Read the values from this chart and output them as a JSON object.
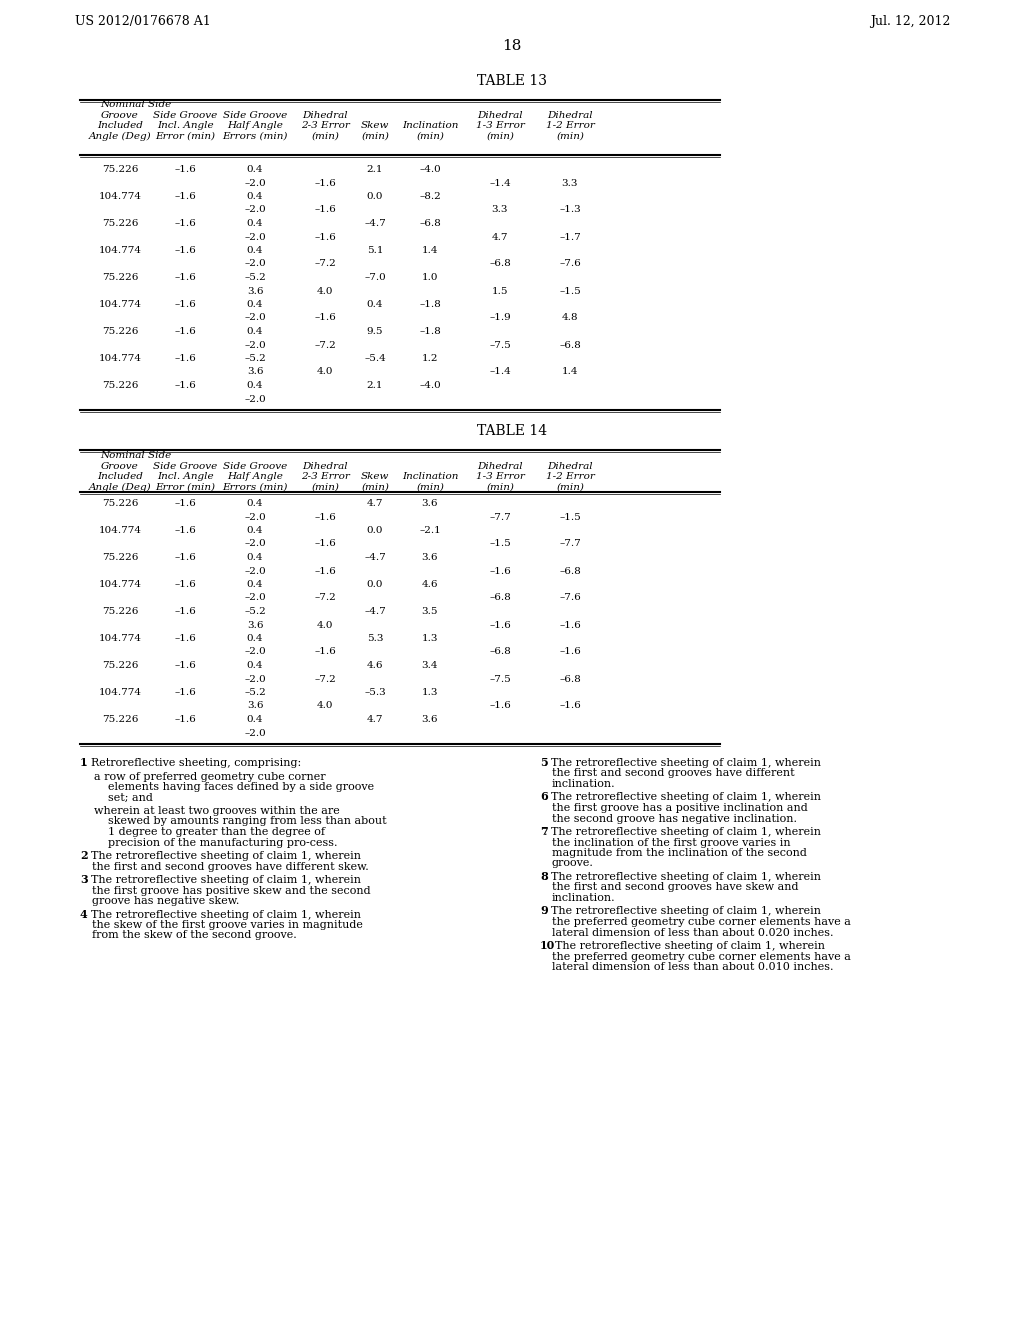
{
  "header_left": "US 2012/0176678 A1",
  "header_right": "Jul. 12, 2012",
  "page_number": "18",
  "table13_title": "TABLE 13",
  "table14_title": "TABLE 14",
  "col_headers": [
    [
      "Nominal Side",
      "",
      "",
      "",
      "",
      "",
      "",
      ""
    ],
    [
      "Groove",
      "Side Groove",
      "Side Groove",
      "Dihedral",
      "",
      "",
      "Dihedral",
      "Dihedral"
    ],
    [
      "Included",
      "Incl. Angle",
      "Half Angle",
      "2-3 Error",
      "Skew",
      "Inclination",
      "1-3 Error",
      "1-2 Error"
    ],
    [
      "Angle (Deg)",
      "Error (min)",
      "Errors (min)",
      "(min)",
      "(min)",
      "(min)",
      "(min)",
      "(min)"
    ]
  ],
  "table13_data": [
    [
      "75.226",
      "–1.6",
      "0.4",
      "",
      "2.1",
      "–4.0",
      "",
      ""
    ],
    [
      "",
      "",
      "–2.0",
      "–1.6",
      "",
      "",
      "–1.4",
      "3.3"
    ],
    [
      "104.774",
      "–1.6",
      "0.4",
      "",
      "0.0",
      "–8.2",
      "",
      ""
    ],
    [
      "",
      "",
      "–2.0",
      "–1.6",
      "",
      "",
      "3.3",
      "–1.3"
    ],
    [
      "75.226",
      "–1.6",
      "0.4",
      "",
      "–4.7",
      "–6.8",
      "",
      ""
    ],
    [
      "",
      "",
      "–2.0",
      "–1.6",
      "",
      "",
      "4.7",
      "–1.7"
    ],
    [
      "104.774",
      "–1.6",
      "0.4",
      "",
      "5.1",
      "1.4",
      "",
      ""
    ],
    [
      "",
      "",
      "–2.0",
      "–7.2",
      "",
      "",
      "–6.8",
      "–7.6"
    ],
    [
      "75.226",
      "–1.6",
      "–5.2",
      "",
      "–7.0",
      "1.0",
      "",
      ""
    ],
    [
      "",
      "",
      "3.6",
      "4.0",
      "",
      "",
      "1.5",
      "–1.5"
    ],
    [
      "104.774",
      "–1.6",
      "0.4",
      "",
      "0.4",
      "–1.8",
      "",
      ""
    ],
    [
      "",
      "",
      "–2.0",
      "–1.6",
      "",
      "",
      "–1.9",
      "4.8"
    ],
    [
      "75.226",
      "–1.6",
      "0.4",
      "",
      "9.5",
      "–1.8",
      "",
      ""
    ],
    [
      "",
      "",
      "–2.0",
      "–7.2",
      "",
      "",
      "–7.5",
      "–6.8"
    ],
    [
      "104.774",
      "–1.6",
      "–5.2",
      "",
      "–5.4",
      "1.2",
      "",
      ""
    ],
    [
      "",
      "",
      "3.6",
      "4.0",
      "",
      "",
      "–1.4",
      "1.4"
    ],
    [
      "75.226",
      "–1.6",
      "0.4",
      "",
      "2.1",
      "–4.0",
      "",
      ""
    ],
    [
      "",
      "",
      "–2.0",
      "",
      "",
      "",
      "",
      ""
    ]
  ],
  "table14_data": [
    [
      "75.226",
      "–1.6",
      "0.4",
      "",
      "4.7",
      "3.6",
      "",
      ""
    ],
    [
      "",
      "",
      "–2.0",
      "–1.6",
      "",
      "",
      "–7.7",
      "–1.5"
    ],
    [
      "104.774",
      "–1.6",
      "0.4",
      "",
      "0.0",
      "–2.1",
      "",
      ""
    ],
    [
      "",
      "",
      "–2.0",
      "–1.6",
      "",
      "",
      "–1.5",
      "–7.7"
    ],
    [
      "75.226",
      "–1.6",
      "0.4",
      "",
      "–4.7",
      "3.6",
      "",
      ""
    ],
    [
      "",
      "",
      "–2.0",
      "–1.6",
      "",
      "",
      "–1.6",
      "–6.8"
    ],
    [
      "104.774",
      "–1.6",
      "0.4",
      "",
      "0.0",
      "4.6",
      "",
      ""
    ],
    [
      "",
      "",
      "–2.0",
      "–7.2",
      "",
      "",
      "–6.8",
      "–7.6"
    ],
    [
      "75.226",
      "–1.6",
      "–5.2",
      "",
      "–4.7",
      "3.5",
      "",
      ""
    ],
    [
      "",
      "",
      "3.6",
      "4.0",
      "",
      "",
      "–1.6",
      "–1.6"
    ],
    [
      "104.774",
      "–1.6",
      "0.4",
      "",
      "5.3",
      "1.3",
      "",
      ""
    ],
    [
      "",
      "",
      "–2.0",
      "–1.6",
      "",
      "",
      "–6.8",
      "–1.6"
    ],
    [
      "75.226",
      "–1.6",
      "0.4",
      "",
      "4.6",
      "3.4",
      "",
      ""
    ],
    [
      "",
      "",
      "–2.0",
      "–7.2",
      "",
      "",
      "–7.5",
      "–6.8"
    ],
    [
      "104.774",
      "–1.6",
      "–5.2",
      "",
      "–5.3",
      "1.3",
      "",
      ""
    ],
    [
      "",
      "",
      "3.6",
      "4.0",
      "",
      "",
      "–1.6",
      "–1.6"
    ],
    [
      "75.226",
      "–1.6",
      "0.4",
      "",
      "4.7",
      "3.6",
      "",
      ""
    ],
    [
      "",
      "",
      "–2.0",
      "",
      "",
      "",
      "",
      ""
    ]
  ],
  "claims_text": [
    {
      "bold_part": "1",
      "text": ". Retroreflective sheeting, comprising:",
      "indent": 0
    },
    {
      "bold_part": "",
      "text": "a row of preferred geometry cube corner elements having faces defined by a side groove set; and",
      "indent": 1
    },
    {
      "bold_part": "",
      "text": "wherein at least two grooves within the are skewed by amounts ranging from less than about 1 degree to greater than the degree of precision of the manufacturing pro-cess.",
      "indent": 1
    },
    {
      "bold_part": "2",
      "text": ". The retroreflective sheeting of claim 1, wherein the first and second grooves have different skew.",
      "indent": 0
    },
    {
      "bold_part": "3",
      "text": ". The retroreflective sheeting of claim 1, wherein the first groove has positive skew and the second groove has negative skew.",
      "indent": 0
    },
    {
      "bold_part": "4",
      "text": ". The retroreflective sheeting of claim 1, wherein the skew of the first groove varies in magnitude from the skew of the second groove.",
      "indent": 0
    }
  ],
  "claims_text_right": [
    {
      "bold_part": "5",
      "text": ". The retroreflective sheeting of claim 1, wherein the first and second grooves have different inclination.",
      "indent": 0
    },
    {
      "bold_part": "6",
      "text": ". The retroreflective sheeting of claim 1, wherein the first groove has a positive inclination and the second groove has negative inclination.",
      "indent": 0
    },
    {
      "bold_part": "7",
      "text": ". The retroreflective sheeting of claim 1, wherein the inclination of the first groove varies in magnitude from the inclination of the second groove.",
      "indent": 0
    },
    {
      "bold_part": "8",
      "text": ". The retroreflective sheeting of claim 1, wherein the first and second grooves have skew and inclination.",
      "indent": 0
    },
    {
      "bold_part": "9",
      "text": ". The retroreflective sheeting of claim 1, wherein the preferred geometry cube corner elements have a lateral dimension of less than about 0.020 inches.",
      "indent": 0
    },
    {
      "bold_part": "10",
      "text": ". The retroreflective sheeting of claim 1, wherein the preferred geometry cube corner elements have a lateral dimension of less than about 0.010 inches.",
      "indent": 0
    }
  ]
}
